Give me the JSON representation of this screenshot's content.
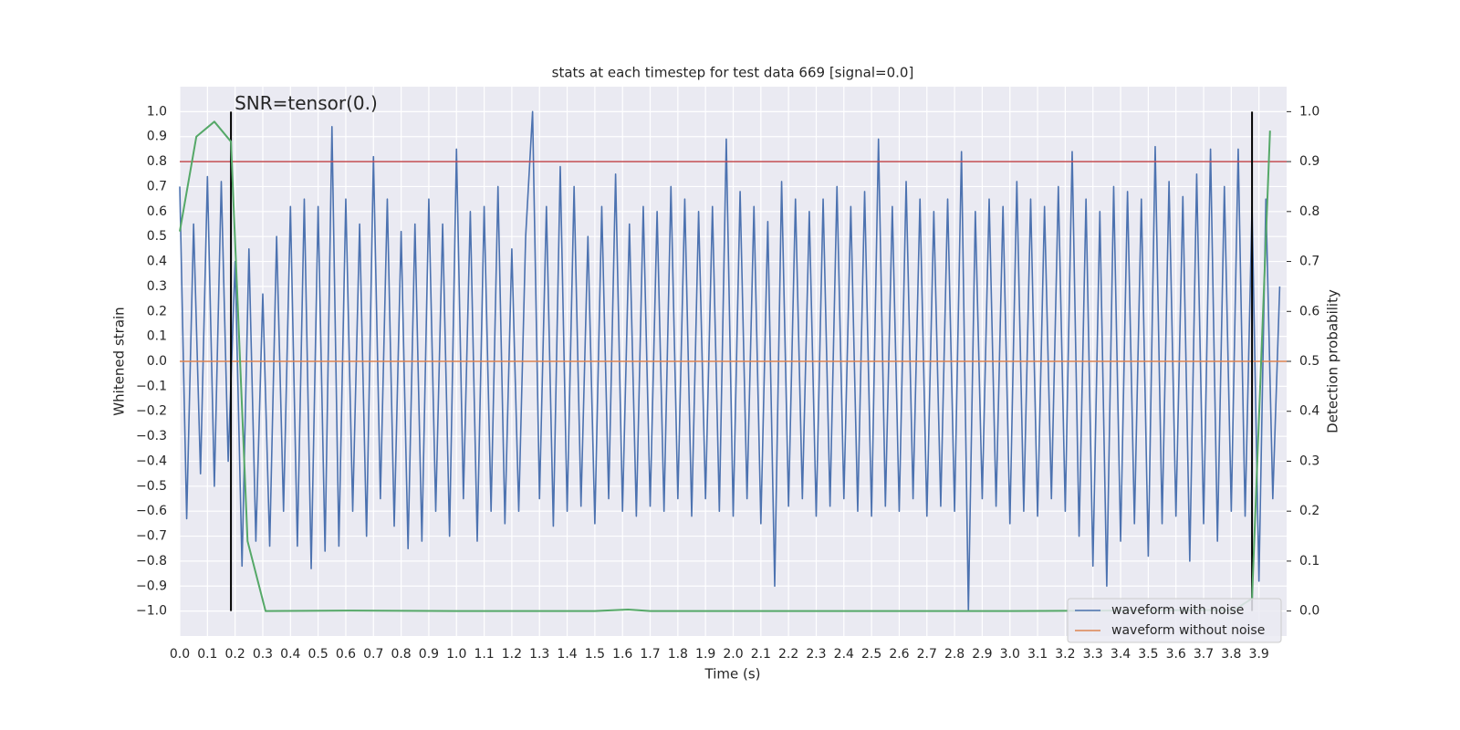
{
  "chart_data": {
    "type": "line",
    "title": "stats at each timestep for test data 669 [signal=0.0]",
    "xlabel": "Time (s)",
    "ylabel": "Whitened strain",
    "y2label": "Detection probability",
    "annotation": "SNR=tensor(0.)",
    "grid": true,
    "background": "#eaeaf2",
    "legend": "lower right",
    "xlim": [
      0,
      4.0
    ],
    "ylim": [
      -1.1,
      1.1
    ],
    "y2lim": [
      -0.05,
      1.05
    ],
    "xticks": [
      {
        "value": 0,
        "label": "0.0"
      },
      0.1,
      0.2,
      0.3,
      0.4,
      0.5,
      0.6,
      0.7,
      0.8,
      0.9,
      {
        "value": 1,
        "label": "1.0"
      },
      1.1,
      1.2,
      1.3,
      1.4,
      1.5,
      1.6,
      1.7,
      1.8,
      1.9,
      {
        "value": 2,
        "label": "2.0"
      },
      2.1,
      2.2,
      2.3,
      2.4,
      2.5,
      2.6,
      2.7,
      2.8,
      2.9,
      {
        "value": 3,
        "label": "3.0"
      },
      3.1,
      3.2,
      3.3,
      3.4,
      3.5,
      3.6,
      3.7,
      3.8,
      3.9
    ],
    "yticks": [
      {
        "value": -1,
        "label": "−1.0"
      },
      {
        "value": -0.9,
        "label": "−0.9"
      },
      {
        "value": -0.8,
        "label": "−0.8"
      },
      {
        "value": -0.7,
        "label": "−0.7"
      },
      {
        "value": -0.6,
        "label": "−0.6"
      },
      {
        "value": -0.5,
        "label": "−0.5"
      },
      {
        "value": -0.4,
        "label": "−0.4"
      },
      {
        "value": -0.3,
        "label": "−0.3"
      },
      {
        "value": -0.2,
        "label": "−0.2"
      },
      {
        "value": -0.1,
        "label": "−0.1"
      },
      {
        "value": 0,
        "label": "0.0"
      },
      0.1,
      0.2,
      0.3,
      0.4,
      0.5,
      0.6,
      0.7,
      0.8,
      0.9,
      {
        "value": 1,
        "label": "1.0"
      }
    ],
    "y2ticks": [
      {
        "value": 0,
        "label": "0.0"
      },
      0.1,
      0.2,
      0.3,
      0.4,
      0.5,
      0.6,
      0.7,
      0.8,
      0.9,
      {
        "value": 1,
        "label": "1.0"
      }
    ],
    "series": [
      {
        "name": "waveform with noise",
        "color": "#4c72b0",
        "x": [
          0,
          0.025,
          0.05,
          0.075,
          0.1,
          0.125,
          0.15,
          0.175,
          0.2,
          0.225,
          0.25,
          0.275,
          0.3,
          0.325,
          0.35,
          0.375,
          0.4,
          0.425,
          0.45,
          0.475,
          0.5,
          0.525,
          0.55,
          0.575,
          0.6,
          0.625,
          0.65,
          0.675,
          0.7,
          0.725,
          0.75,
          0.775,
          0.8,
          0.825,
          0.85,
          0.875,
          0.9,
          0.925,
          0.95,
          0.975,
          1,
          1.025,
          1.05,
          1.075,
          1.1,
          1.125,
          1.15,
          1.175,
          1.2,
          1.225,
          1.25,
          1.275,
          1.3,
          1.325,
          1.35,
          1.375,
          1.4,
          1.425,
          1.45,
          1.475,
          1.5,
          1.525,
          1.55,
          1.575,
          1.6,
          1.625,
          1.65,
          1.675,
          1.7,
          1.725,
          1.75,
          1.775,
          1.8,
          1.825,
          1.85,
          1.875,
          1.9,
          1.925,
          1.95,
          1.975,
          2,
          2.025,
          2.05,
          2.075,
          2.1,
          2.125,
          2.15,
          2.175,
          2.2,
          2.225,
          2.25,
          2.275,
          2.3,
          2.325,
          2.35,
          2.375,
          2.4,
          2.425,
          2.45,
          2.475,
          2.5,
          2.525,
          2.55,
          2.575,
          2.6,
          2.625,
          2.65,
          2.675,
          2.7,
          2.725,
          2.75,
          2.775,
          2.8,
          2.825,
          2.85,
          2.875,
          2.9,
          2.925,
          2.95,
          2.975,
          3,
          3.025,
          3.05,
          3.075,
          3.1,
          3.125,
          3.15,
          3.175,
          3.2,
          3.225,
          3.25,
          3.275,
          3.3,
          3.325,
          3.35,
          3.375,
          3.4,
          3.425,
          3.45,
          3.475,
          3.5,
          3.525,
          3.55,
          3.575,
          3.6,
          3.625,
          3.65,
          3.675,
          3.7,
          3.725,
          3.75,
          3.775,
          3.8,
          3.825,
          3.85,
          3.875,
          3.9,
          3.925,
          3.95,
          3.975
        ],
        "values": [
          0.7,
          -0.63,
          0.55,
          -0.45,
          0.74,
          -0.5,
          0.72,
          -0.4,
          0.4,
          -0.82,
          0.45,
          -0.72,
          0.27,
          -0.74,
          0.5,
          -0.6,
          0.62,
          -0.74,
          0.65,
          -0.83,
          0.62,
          -0.76,
          0.94,
          -0.74,
          0.65,
          -0.6,
          0.55,
          -0.7,
          0.82,
          -0.55,
          0.65,
          -0.66,
          0.52,
          -0.75,
          0.55,
          -0.72,
          0.65,
          -0.6,
          0.55,
          -0.7,
          0.85,
          -0.55,
          0.6,
          -0.72,
          0.62,
          -0.6,
          0.7,
          -0.65,
          0.45,
          -0.6,
          0.5,
          1.0,
          -0.55,
          0.62,
          -0.66,
          0.78,
          -0.6,
          0.7,
          -0.58,
          0.5,
          -0.65,
          0.62,
          -0.55,
          0.75,
          -0.6,
          0.55,
          -0.62,
          0.62,
          -0.58,
          0.6,
          -0.6,
          0.7,
          -0.55,
          0.65,
          -0.62,
          0.6,
          -0.55,
          0.62,
          -0.6,
          0.89,
          -0.62,
          0.68,
          -0.55,
          0.62,
          -0.65,
          0.56,
          -0.9,
          0.72,
          -0.58,
          0.65,
          -0.55,
          0.6,
          -0.62,
          0.65,
          -0.58,
          0.7,
          -0.55,
          0.62,
          -0.6,
          0.68,
          -0.62,
          0.89,
          -0.58,
          0.62,
          -0.6,
          0.72,
          -0.55,
          0.65,
          -0.62,
          0.6,
          -0.58,
          0.65,
          -0.6,
          0.84,
          -1.0,
          0.6,
          -0.55,
          0.65,
          -0.58,
          0.62,
          -0.65,
          0.72,
          -0.6,
          0.65,
          -0.62,
          0.62,
          -0.55,
          0.7,
          -0.6,
          0.84,
          -0.7,
          0.65,
          -0.82,
          0.6,
          -0.9,
          0.7,
          -0.72,
          0.68,
          -0.65,
          0.65,
          -0.78,
          0.86,
          -0.65,
          0.72,
          -0.62,
          0.66,
          -0.8,
          0.75,
          -0.65,
          0.85,
          -0.72,
          0.7,
          -0.6,
          0.85,
          -0.62,
          0.62,
          -0.88,
          0.65,
          -0.55,
          0.3
        ]
      },
      {
        "name": "waveform without noise",
        "color": "#dd8452",
        "x": [
          0,
          4.0
        ],
        "values": [
          0,
          0
        ]
      }
    ],
    "probability": {
      "color": "#55a868",
      "axis": "y2",
      "x": [
        0,
        0.06,
        0.125,
        0.185,
        0.245,
        0.31,
        0.62,
        1.0,
        1.5,
        1.62,
        1.7,
        2.5,
        3.0,
        3.81,
        3.875,
        3.94
      ],
      "values": [
        0.76,
        0.95,
        0.98,
        0.94,
        0.14,
        0.0,
        0.001,
        0.0,
        0.0,
        0.003,
        0.0,
        0.0,
        0.0,
        0.002,
        0.025,
        0.962
      ]
    },
    "threshold": {
      "value": 0.8,
      "color": "#c44e52"
    },
    "vlines": {
      "x": [
        0.185,
        3.875
      ],
      "ymin": -1,
      "ymax": 1,
      "color": "#000000"
    }
  }
}
